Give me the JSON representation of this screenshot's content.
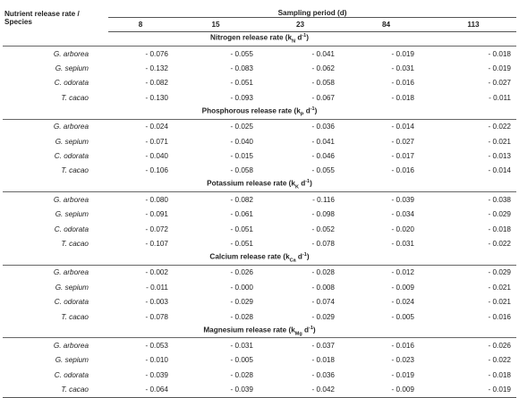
{
  "header": {
    "corner_label": "Nutrient release rate / Species",
    "period_label": "Sampling period (d)",
    "periods": [
      "8",
      "15",
      "23",
      "84",
      "113"
    ]
  },
  "sections": [
    {
      "title": "Nitrogen release rate (k",
      "sub": "N",
      "unit": " d",
      "sup": "-1",
      "close": ")",
      "rows": [
        {
          "species": "G. arborea",
          "values": [
            "- 0.076",
            "- 0.055",
            "- 0.041",
            "- 0.019",
            "- 0.018"
          ]
        },
        {
          "species": "G. sepium",
          "values": [
            "- 0.132",
            "- 0.083",
            "- 0.062",
            "- 0.031",
            "- 0.019"
          ]
        },
        {
          "species": "C. odorata",
          "values": [
            "- 0.082",
            "- 0.051",
            "- 0.058",
            "- 0.016",
            "- 0.027"
          ]
        },
        {
          "species": "T. cacao",
          "values": [
            "- 0.130",
            "- 0.093",
            "- 0.067",
            "- 0.018",
            "- 0.011"
          ]
        }
      ]
    },
    {
      "title": "Phosphorous release rate (k",
      "sub": "P",
      "unit": " d",
      "sup": "-1",
      "close": ")",
      "rows": [
        {
          "species": "G. arborea",
          "values": [
            "- 0.024",
            "- 0.025",
            "- 0.036",
            "- 0.014",
            "- 0.022"
          ]
        },
        {
          "species": "G. sepium",
          "values": [
            "- 0.071",
            "- 0.040",
            "- 0.041",
            "- 0.027",
            "- 0.021"
          ]
        },
        {
          "species": "C. odorata",
          "values": [
            "- 0.040",
            "- 0.015",
            "- 0.046",
            "- 0.017",
            "- 0.013"
          ]
        },
        {
          "species": "T. cacao",
          "values": [
            "- 0.106",
            "- 0.058",
            "- 0.055",
            "- 0.016",
            "- 0.014"
          ]
        }
      ]
    },
    {
      "title": "Potassium release rate (k",
      "sub": "K",
      "unit": " d",
      "sup": "-1",
      "close": ")",
      "rows": [
        {
          "species": "G. arborea",
          "values": [
            "- 0.080",
            "- 0.082",
            "- 0.116",
            "- 0.039",
            "- 0.038"
          ]
        },
        {
          "species": "G. sepium",
          "values": [
            "- 0.091",
            "- 0.061",
            "- 0.098",
            "- 0.034",
            "- 0.029"
          ]
        },
        {
          "species": "C. odorata",
          "values": [
            "- 0.072",
            "- 0.051",
            "- 0.052",
            "- 0.020",
            "- 0.018"
          ]
        },
        {
          "species": "T. cacao",
          "values": [
            "- 0.107",
            "- 0.051",
            "- 0.078",
            "- 0.031",
            "- 0.022"
          ]
        }
      ]
    },
    {
      "title": "Calcium release rate (k",
      "sub": "Ca",
      "unit": " d",
      "sup": "-1",
      "close": ")",
      "rows": [
        {
          "species": "G. arborea",
          "values": [
            "- 0.002",
            "- 0.026",
            "- 0.028",
            "- 0.012",
            "- 0.029"
          ]
        },
        {
          "species": "G. sepium",
          "values": [
            "- 0.011",
            "- 0.000",
            "- 0.008",
            "- 0.009",
            "- 0.021"
          ]
        },
        {
          "species": "C. odorata",
          "values": [
            "- 0.003",
            "- 0.029",
            "- 0.074",
            "- 0.024",
            "- 0.021"
          ]
        },
        {
          "species": "T. cacao",
          "values": [
            "- 0.078",
            "- 0.028",
            "- 0.029",
            "- 0.005",
            "- 0.016"
          ]
        }
      ]
    },
    {
      "title": "Magnesium release rate (k",
      "sub": "Mg",
      "unit": " d",
      "sup": "-1",
      "close": ")",
      "rows": [
        {
          "species": "G. arborea",
          "values": [
            "- 0.053",
            "- 0.031",
            "- 0.037",
            "- 0.016",
            "- 0.026"
          ]
        },
        {
          "species": "G. sepium",
          "values": [
            "- 0.010",
            "- 0.005",
            "- 0.018",
            "- 0.023",
            "- 0.022"
          ]
        },
        {
          "species": "C. odorata",
          "values": [
            "- 0.039",
            "- 0.028",
            "- 0.036",
            "- 0.019",
            "- 0.018"
          ]
        },
        {
          "species": "T. cacao",
          "values": [
            "- 0.064",
            "- 0.039",
            "- 0.042",
            "- 0.009",
            "- 0.019"
          ]
        }
      ]
    }
  ]
}
